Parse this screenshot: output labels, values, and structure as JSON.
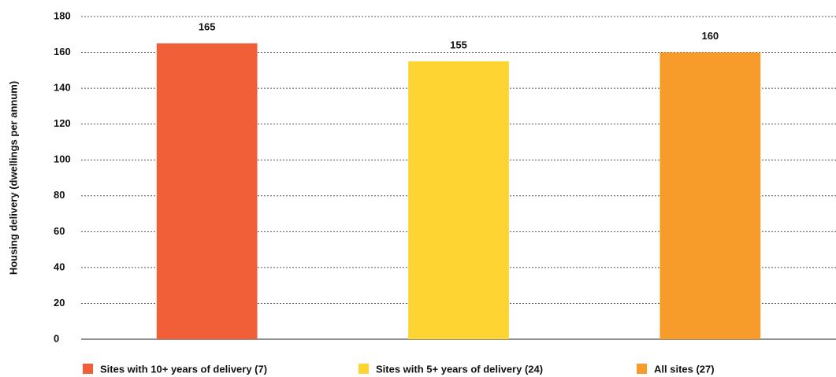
{
  "chart_data": {
    "type": "bar",
    "y_label": "Housing delivery (dwellings per annum)",
    "categories": [
      "Sites with 10+ years of delivery (7)",
      "Sites with 5+ years of delivery (24)",
      "All sites (27)"
    ],
    "values": [
      165,
      155,
      160
    ],
    "colors": [
      "#f05f38",
      "#fdd431",
      "#f79b2a"
    ],
    "ylim": [
      0,
      180
    ],
    "yticks": [
      0,
      20,
      40,
      60,
      80,
      100,
      120,
      140,
      160,
      180
    ],
    "grid": true
  }
}
